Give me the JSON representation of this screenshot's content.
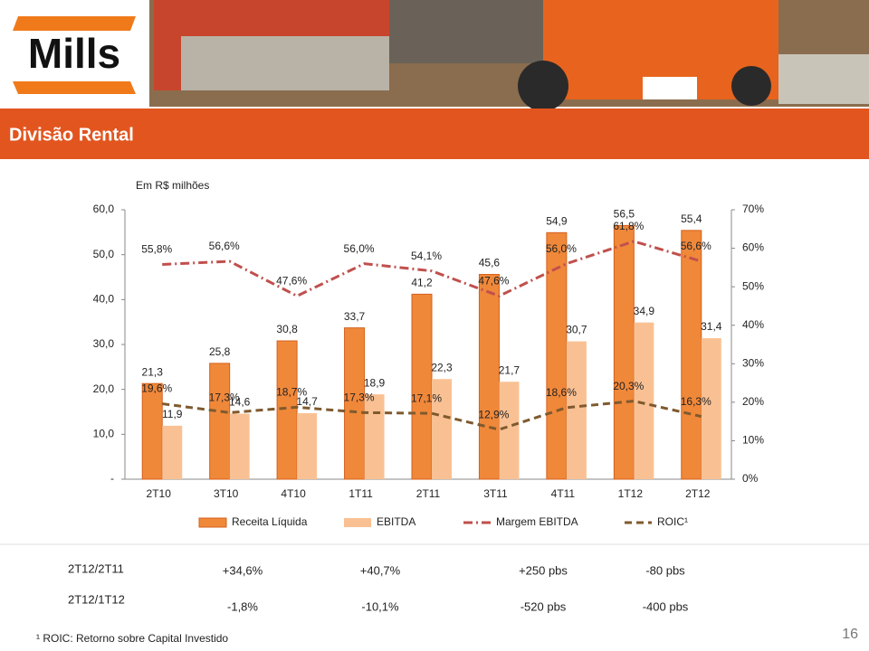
{
  "header": {
    "logo": "Mills",
    "title": "Divisão Rental"
  },
  "chart_data": {
    "type": "bar",
    "subtitle": "Em R$ milhões",
    "categories": [
      "2T10",
      "3T10",
      "4T10",
      "1T11",
      "2T11",
      "3T11",
      "4T11",
      "1T12",
      "2T12"
    ],
    "series": [
      {
        "name": "Receita Líquida",
        "type": "bar",
        "color": "#f0883a",
        "values": [
          21.3,
          25.8,
          30.8,
          33.7,
          41.2,
          45.6,
          54.9,
          56.5,
          55.4
        ],
        "value_labels": [
          "21,3",
          "25,8",
          "30,8",
          "33,7",
          "41,2",
          "45,6",
          "54,9",
          "56,5",
          "55,4"
        ]
      },
      {
        "name": "EBITDA",
        "type": "bar",
        "color": "#f9c193",
        "values": [
          11.9,
          14.6,
          14.7,
          18.9,
          22.3,
          21.7,
          30.7,
          34.9,
          31.4
        ],
        "value_labels": [
          "11,9",
          "14,6",
          "14,7",
          "18,9",
          "22,3",
          "21,7",
          "30,7",
          "34,9",
          "31,4"
        ]
      },
      {
        "name": "Margem EBITDA",
        "type": "line",
        "axis": "y2",
        "style": "dash-dot",
        "color": "#c0504d",
        "values": [
          55.8,
          56.6,
          47.6,
          56.0,
          54.1,
          47.6,
          56.0,
          61.8,
          56.6
        ],
        "value_labels": [
          "55,8%",
          "56,6%",
          "47,6%",
          "56,0%",
          "54,1%",
          "47,6%",
          "56,0%",
          "61,8%",
          "56,6%"
        ]
      },
      {
        "name": "ROIC¹",
        "type": "line",
        "axis": "y2",
        "style": "dashed",
        "color": "#7f5a2e",
        "values": [
          19.6,
          17.3,
          18.7,
          17.3,
          17.1,
          12.9,
          18.6,
          20.3,
          16.3
        ],
        "value_labels": [
          "19,6%",
          "17,3%",
          "18,7%",
          "17,3%",
          "17,1%",
          "12,9%",
          "18,6%",
          "20,3%",
          "16,3%"
        ]
      }
    ],
    "ylim": [
      0,
      60
    ],
    "yticks": [
      {
        "value": 0,
        "label": "-"
      },
      {
        "value": 10,
        "label": "10,0"
      },
      {
        "value": 20,
        "label": "20,0"
      },
      {
        "value": 30,
        "label": "30,0"
      },
      {
        "value": 40,
        "label": "40,0"
      },
      {
        "value": 50,
        "label": "50,0"
      },
      {
        "value": 60,
        "label": "60,0"
      }
    ],
    "y2lim": [
      0,
      70
    ],
    "y2ticks": [
      {
        "value": 0,
        "label": "0%"
      },
      {
        "value": 10,
        "label": "10%"
      },
      {
        "value": 20,
        "label": "20%"
      },
      {
        "value": 30,
        "label": "30%"
      },
      {
        "value": 40,
        "label": "40%"
      },
      {
        "value": 50,
        "label": "50%"
      },
      {
        "value": 60,
        "label": "60%"
      },
      {
        "value": 70,
        "label": "70%"
      }
    ],
    "grid": false,
    "legend": "bottom"
  },
  "comparison": {
    "rows": [
      [
        "2T12/2T11",
        "+34,6%",
        "+40,7%",
        "+250 pbs",
        "-80 pbs"
      ],
      [
        "2T12/1T12",
        "-1,8%",
        "-10,1%",
        "-520 pbs",
        "-400 pbs"
      ]
    ]
  },
  "footnote": "¹ ROIC: Retorno sobre Capital Investido",
  "page_number": 16
}
